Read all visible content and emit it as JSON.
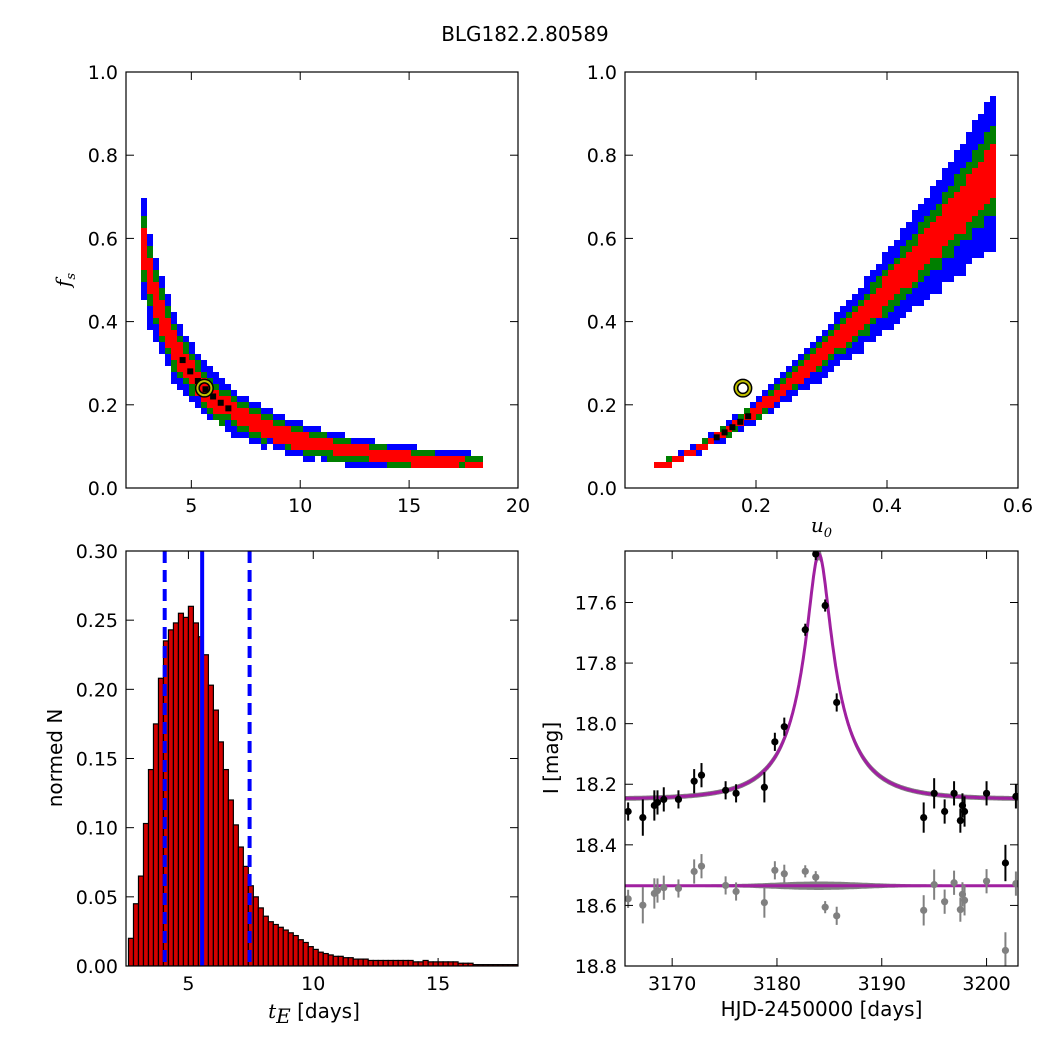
{
  "title": "BLG182.2.80589",
  "colors": {
    "blue": "#0000ff",
    "green": "#007f00",
    "red": "#ff0000",
    "black": "#000000",
    "bar_fill": "#d40000",
    "model": "#a020a0",
    "residual_gray": "#808080",
    "best_fit_ring": "#bfbf00"
  },
  "chart_data": [
    {
      "id": "fs-vs-te",
      "type": "heatmap",
      "title": "",
      "xlabel": "",
      "ylabel": "f_s",
      "ylabel_main": "f",
      "ylabel_sub": "s",
      "xlim": [
        2.0,
        20.0
      ],
      "ylim": [
        0.0,
        1.0
      ],
      "xticks": [
        5,
        10,
        15,
        20
      ],
      "xtick_labels": [
        "5",
        "10",
        "15",
        "20"
      ],
      "yticks": [
        0.0,
        0.2,
        0.4,
        0.6,
        0.8,
        1.0
      ],
      "ytick_labels": [
        "0.0",
        "0.2",
        "0.4",
        "0.6",
        "0.8",
        "1.0"
      ],
      "confidence_levels": [
        "blue",
        "green",
        "red",
        "black"
      ],
      "best_fit": {
        "x": 5.6,
        "y": 0.24
      },
      "curve": {
        "form": "x^(-1.26)",
        "anchor_x": 5.6,
        "anchor_y": 0.24,
        "x_range": [
          2.7,
          18.2
        ]
      }
    },
    {
      "id": "fs-vs-u0",
      "type": "heatmap",
      "title": "",
      "xlabel": "u_0",
      "xlabel_main": "u",
      "xlabel_sub": "0",
      "ylabel": "",
      "xlim": [
        0.0,
        0.6
      ],
      "ylim": [
        0.0,
        1.0
      ],
      "xticks": [
        0.2,
        0.4,
        0.6
      ],
      "xtick_labels": [
        "0.2",
        "0.4",
        "0.6"
      ],
      "yticks": [
        0.0,
        0.2,
        0.4,
        0.6,
        0.8,
        1.0
      ],
      "ytick_labels": [
        "0.0",
        "0.2",
        "0.4",
        "0.6",
        "0.8",
        "1.0"
      ],
      "confidence_levels": [
        "blue",
        "green",
        "red",
        "black"
      ],
      "best_fit": {
        "x": 0.18,
        "y": 0.24
      },
      "curve": {
        "form": "0.06 + 1.8*(x-0.05)^1.4",
        "x_range": [
          0.045,
          0.56
        ]
      }
    },
    {
      "id": "te-histogram",
      "type": "bar",
      "title": "",
      "xlabel": "t_E [days]",
      "xlabel_main": "t",
      "xlabel_sub": "E",
      "xlabel_suffix": " [days]",
      "ylabel": "normed N",
      "xlim": [
        2.5,
        18.2
      ],
      "ylim": [
        0.0,
        0.3
      ],
      "xticks": [
        5,
        10,
        15
      ],
      "xtick_labels": [
        "5",
        "10",
        "15"
      ],
      "yticks": [
        0.0,
        0.05,
        0.1,
        0.15,
        0.2,
        0.25,
        0.3
      ],
      "ytick_labels": [
        "0.00",
        "0.05",
        "0.10",
        "0.15",
        "0.20",
        "0.25",
        "0.30"
      ],
      "bin_start": 2.6,
      "bin_width": 0.2,
      "values": [
        0.02,
        0.045,
        0.065,
        0.103,
        0.142,
        0.175,
        0.208,
        0.235,
        0.243,
        0.248,
        0.255,
        0.252,
        0.26,
        0.248,
        0.238,
        0.225,
        0.203,
        0.185,
        0.162,
        0.142,
        0.12,
        0.102,
        0.086,
        0.072,
        0.058,
        0.05,
        0.042,
        0.036,
        0.032,
        0.03,
        0.028,
        0.026,
        0.024,
        0.022,
        0.019,
        0.017,
        0.014,
        0.012,
        0.01,
        0.009,
        0.008,
        0.007,
        0.007,
        0.006,
        0.006,
        0.005,
        0.005,
        0.005,
        0.004,
        0.004,
        0.004,
        0.004,
        0.004,
        0.004,
        0.004,
        0.004,
        0.004,
        0.003,
        0.003,
        0.004,
        0.003,
        0.003,
        0.003,
        0.003,
        0.003,
        0.003,
        0.002,
        0.002,
        0.002,
        0.001,
        0.001,
        0.001,
        0.001,
        0.001,
        0.001,
        0.001,
        0.001,
        0.001
      ],
      "median_line": 5.55,
      "interval_lines": [
        4.05,
        7.45
      ]
    },
    {
      "id": "light-curve",
      "type": "scatter",
      "title": "",
      "xlabel": "HJD-2450000 [days]",
      "ylabel": "I [mag]",
      "xlim": [
        3165.5,
        3203.0
      ],
      "ylim": [
        18.8,
        17.43
      ],
      "y_inverted": true,
      "xticks": [
        3170,
        3180,
        3190,
        3200
      ],
      "xtick_labels": [
        "3170",
        "3180",
        "3190",
        "3200"
      ],
      "yticks": [
        17.6,
        17.8,
        18.0,
        18.2,
        18.4,
        18.6,
        18.8
      ],
      "ytick_labels": [
        "17.6",
        "17.8",
        "18.0",
        "18.2",
        "18.4",
        "18.6",
        "18.8"
      ],
      "model": {
        "t0": 3184.0,
        "tE": 5.6,
        "u0": 0.18,
        "fs": 0.24,
        "baseline": 18.25,
        "residual_baseline": 18.535
      },
      "series": [
        {
          "kind": "data",
          "points": [
            {
              "x": 3165.8,
              "y": 18.29,
              "err": 0.03
            },
            {
              "x": 3167.2,
              "y": 18.31,
              "err": 0.06
            },
            {
              "x": 3168.3,
              "y": 18.27,
              "err": 0.05
            },
            {
              "x": 3168.6,
              "y": 18.26,
              "err": 0.04
            },
            {
              "x": 3169.2,
              "y": 18.25,
              "err": 0.04
            },
            {
              "x": 3170.6,
              "y": 18.25,
              "err": 0.03
            },
            {
              "x": 3172.1,
              "y": 18.19,
              "err": 0.04
            },
            {
              "x": 3172.8,
              "y": 18.17,
              "err": 0.04
            },
            {
              "x": 3175.1,
              "y": 18.22,
              "err": 0.03
            },
            {
              "x": 3176.1,
              "y": 18.23,
              "err": 0.03
            },
            {
              "x": 3178.8,
              "y": 18.21,
              "err": 0.05
            },
            {
              "x": 3179.8,
              "y": 18.06,
              "err": 0.03
            },
            {
              "x": 3180.7,
              "y": 18.01,
              "err": 0.03
            },
            {
              "x": 3182.7,
              "y": 17.69,
              "err": 0.02
            },
            {
              "x": 3183.7,
              "y": 17.44,
              "err": 0.02
            },
            {
              "x": 3184.6,
              "y": 17.61,
              "err": 0.02
            },
            {
              "x": 3185.7,
              "y": 17.93,
              "err": 0.03
            },
            {
              "x": 3194.0,
              "y": 18.31,
              "err": 0.05
            },
            {
              "x": 3195.0,
              "y": 18.23,
              "err": 0.05
            },
            {
              "x": 3196.0,
              "y": 18.29,
              "err": 0.04
            },
            {
              "x": 3196.9,
              "y": 18.23,
              "err": 0.04
            },
            {
              "x": 3197.5,
              "y": 18.32,
              "err": 0.04
            },
            {
              "x": 3197.7,
              "y": 18.27,
              "err": 0.04
            },
            {
              "x": 3197.9,
              "y": 18.29,
              "err": 0.05
            },
            {
              "x": 3200.0,
              "y": 18.23,
              "err": 0.04
            },
            {
              "x": 3201.8,
              "y": 18.46,
              "err": 0.06
            },
            {
              "x": 3202.8,
              "y": 18.24,
              "err": 0.04
            }
          ]
        }
      ]
    }
  ]
}
